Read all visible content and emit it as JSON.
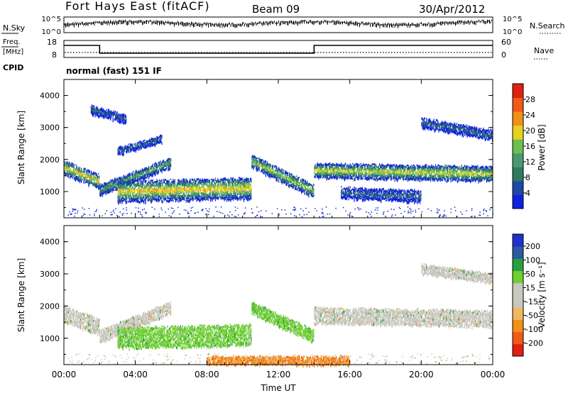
{
  "header": {
    "station": "Fort Hays East (fitACF)",
    "beam": "Beam 09",
    "date": "30/Apr/2012"
  },
  "noise_panel": {
    "left_label": "N.Sky",
    "left_ticks": [
      "10^5",
      "10^0"
    ],
    "right_label": "N.Search",
    "right_ticks": [
      "10^5",
      "10^0"
    ]
  },
  "freq_panel": {
    "left_label_1": "Freq.",
    "left_label_2": "[MHz]",
    "left_ticks": [
      "18",
      "8"
    ],
    "right_label": "Nave",
    "right_ticks": [
      "60",
      "0"
    ]
  },
  "cpid": {
    "label": "CPID",
    "mode": "normal (fast) 151 IF"
  },
  "colors": {
    "power": [
      "#1020e0",
      "#1e48a8",
      "#2f7a60",
      "#4a9a70",
      "#6bc050",
      "#e8d020",
      "#f09018",
      "#f05a18",
      "#e02010"
    ],
    "velocity": [
      "#e02010",
      "#f05a18",
      "#f09018",
      "#f2b860",
      "#c8c8c0",
      "#c8c8c0",
      "#6ed030",
      "#28a040",
      "#2a5aa0",
      "#2030c8"
    ]
  },
  "chart_data": [
    {
      "type": "heatmap",
      "name": "power",
      "ylabel": "Slant Range [km]",
      "yticks": [
        "4000",
        "3000",
        "2000",
        "1000"
      ],
      "ylim": [
        180,
        4500
      ],
      "colorbar": {
        "label": "Power [dB]",
        "ticks": [
          "28",
          "24",
          "20",
          "16",
          "12",
          "8",
          "4"
        ],
        "range": [
          0,
          32
        ]
      },
      "bands": [
        {
          "t0": 0.0,
          "t1": 2.0,
          "r0": 1800,
          "r1": 1350,
          "w": 420,
          "v": 22
        },
        {
          "t0": 2.0,
          "t1": 6.0,
          "r0": 1100,
          "r1": 1950,
          "w": 320,
          "v": 14
        },
        {
          "t0": 3.0,
          "t1": 10.5,
          "r0": 1050,
          "r1": 1150,
          "w": 650,
          "v": 22
        },
        {
          "t0": 10.5,
          "t1": 14.0,
          "r0": 2000,
          "r1": 1050,
          "w": 380,
          "v": 18
        },
        {
          "t0": 14.0,
          "t1": 24.0,
          "r0": 1700,
          "r1": 1600,
          "w": 450,
          "v": 20
        },
        {
          "t0": 1.5,
          "t1": 3.5,
          "r0": 3600,
          "r1": 3300,
          "w": 250,
          "v": 8
        },
        {
          "t0": 3.0,
          "t1": 5.5,
          "r0": 2300,
          "r1": 2700,
          "w": 200,
          "v": 8
        },
        {
          "t0": 20.0,
          "t1": 24.0,
          "r0": 3200,
          "r1": 2800,
          "w": 300,
          "v": 8
        },
        {
          "t0": 15.5,
          "t1": 20.0,
          "r0": 1000,
          "r1": 900,
          "w": 350,
          "v": 8
        }
      ]
    },
    {
      "type": "heatmap",
      "name": "velocity",
      "ylabel": "Slant Range [km]",
      "yticks": [
        "4000",
        "3000",
        "2000",
        "1000"
      ],
      "ylim": [
        180,
        4500
      ],
      "xlabel": "Time UT",
      "xticks": [
        "00:00",
        "04:00",
        "08:00",
        "12:00",
        "16:00",
        "20:00",
        "00:00"
      ],
      "xlim": [
        0,
        24
      ],
      "colorbar": {
        "label": "Velocity [m s⁻¹]",
        "ticks": [
          "200",
          "100",
          "50",
          "15",
          "-15",
          "-50",
          "-100",
          "-200"
        ]
      },
      "bands": [
        {
          "t0": 0.0,
          "t1": 2.0,
          "r0": 1800,
          "r1": 1400,
          "w": 500,
          "v": "gs"
        },
        {
          "t0": 2.0,
          "t1": 6.0,
          "r0": 1100,
          "r1": 2000,
          "w": 380,
          "v": "gs"
        },
        {
          "t0": 3.0,
          "t1": 10.5,
          "r0": 1050,
          "r1": 1150,
          "w": 650,
          "v": "pos"
        },
        {
          "t0": 10.5,
          "t1": 14.0,
          "r0": 2000,
          "r1": 1100,
          "w": 380,
          "v": "pos"
        },
        {
          "t0": 14.0,
          "t1": 24.0,
          "r0": 1750,
          "r1": 1650,
          "w": 500,
          "v": "gs"
        },
        {
          "t0": 8.0,
          "t1": 16.0,
          "r0": 350,
          "r1": 350,
          "w": 250,
          "v": "neg"
        },
        {
          "t0": 20.0,
          "t1": 24.0,
          "r0": 3200,
          "r1": 2900,
          "w": 300,
          "v": "gs"
        }
      ]
    }
  ]
}
